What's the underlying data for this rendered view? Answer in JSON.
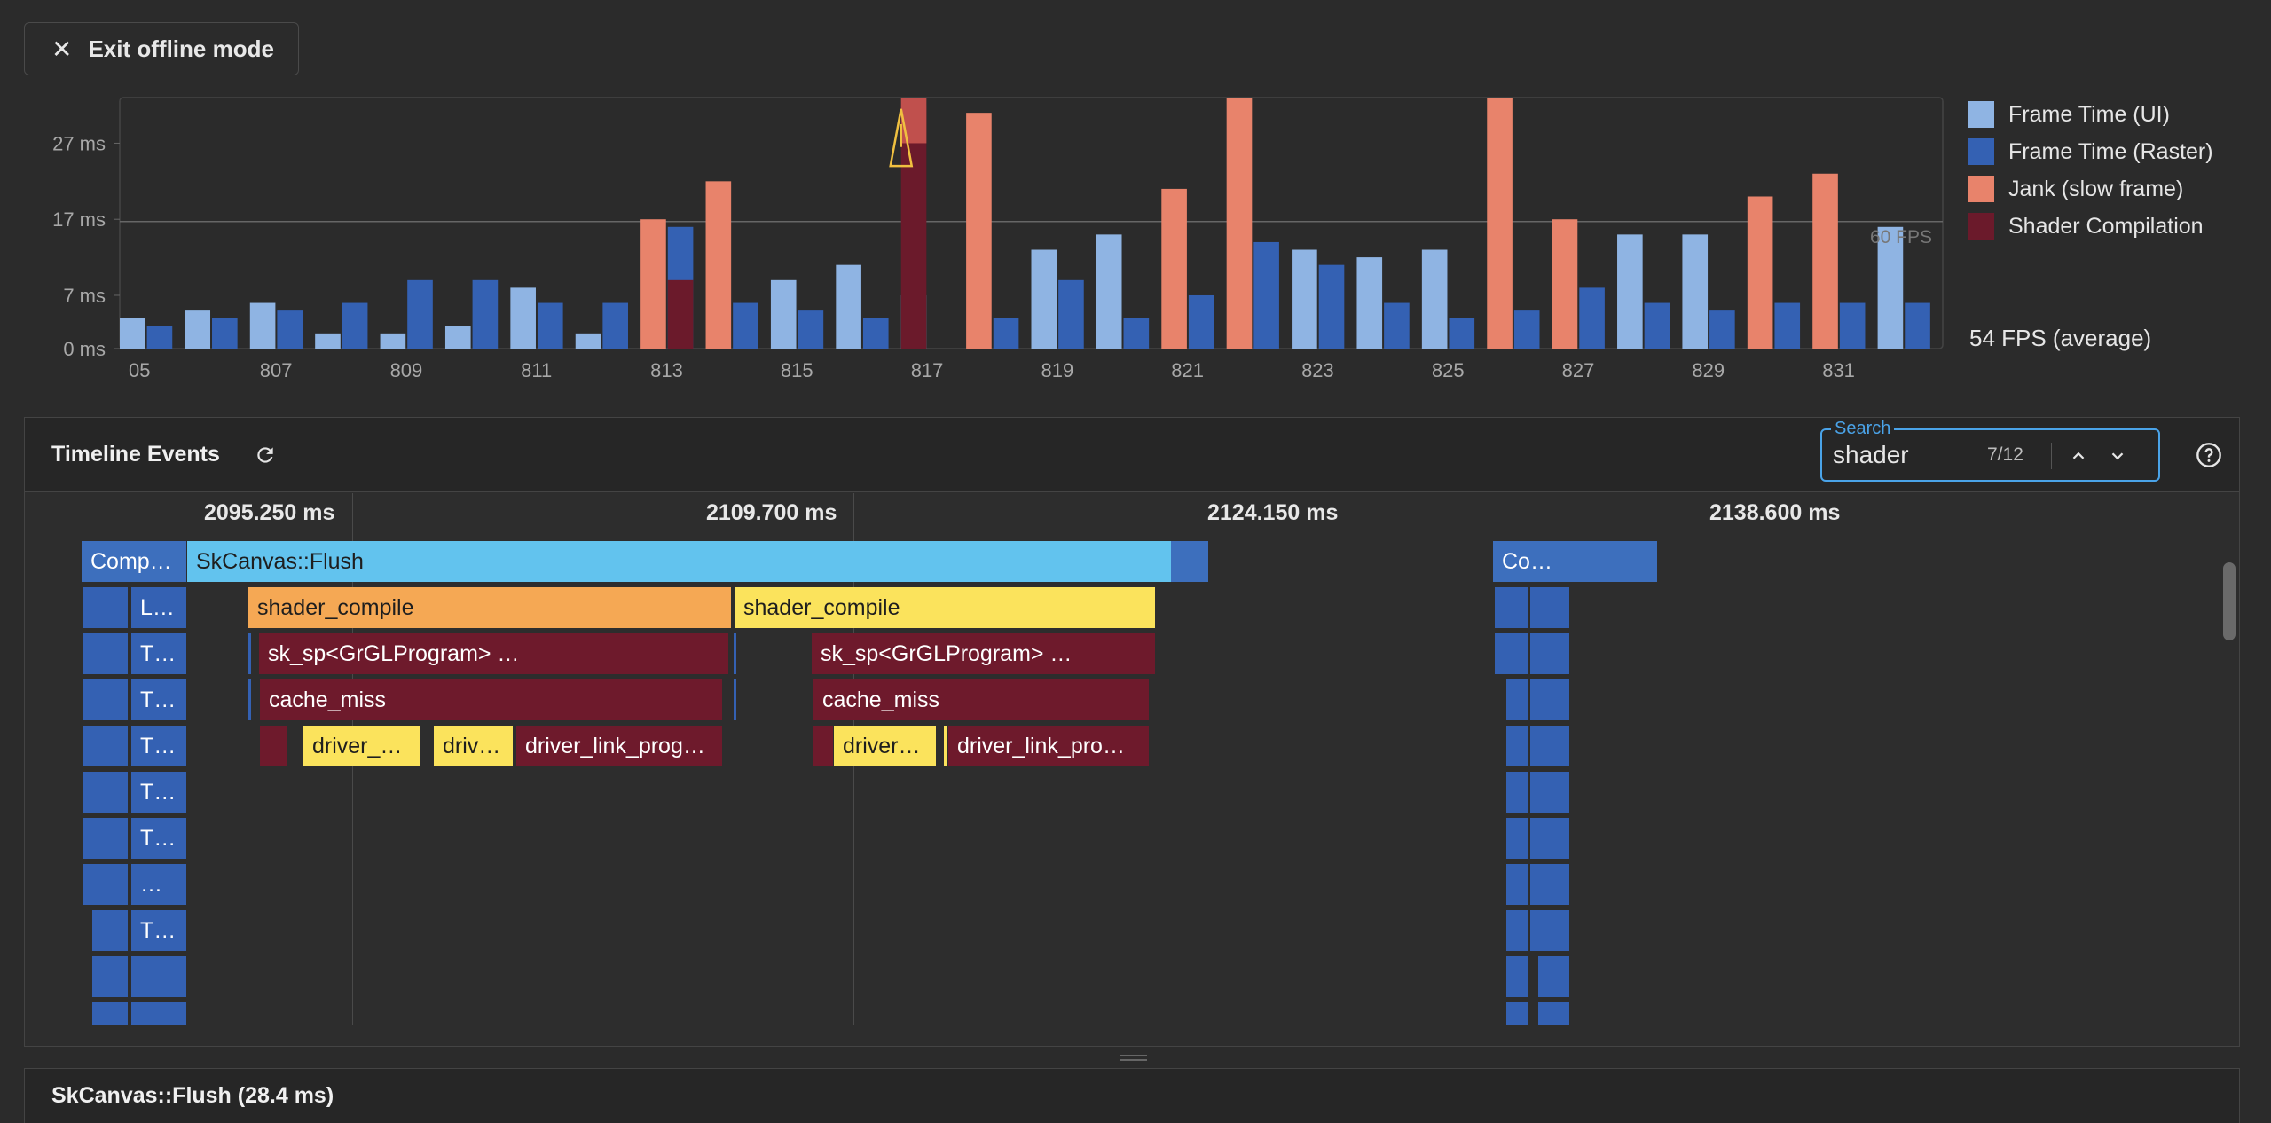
{
  "toolbar": {
    "exit_label": "Exit offline mode",
    "exit_icon": "close-icon"
  },
  "chart_data": {
    "type": "bar",
    "yticks": [
      "27 ms",
      "17 ms",
      "7 ms",
      "0 ms"
    ],
    "ylim": [
      0,
      33
    ],
    "categories": [
      "805",
      "806",
      "807",
      "808",
      "809",
      "810",
      "811",
      "812",
      "813",
      "814",
      "815",
      "816",
      "817",
      "818",
      "819",
      "820",
      "821",
      "822",
      "823",
      "824",
      "825",
      "826",
      "827",
      "828",
      "829",
      "830",
      "831",
      "832"
    ],
    "xtick_labels": [
      "05",
      "807",
      "809",
      "811",
      "813",
      "815",
      "817",
      "819",
      "821",
      "823",
      "825",
      "827",
      "829",
      "831"
    ],
    "fps_line": {
      "value": 16.7,
      "label": "60 FPS"
    },
    "series": [
      {
        "name": "Frame Time (UI)",
        "color": "#8fb4e3",
        "values": [
          4,
          5,
          6,
          2,
          2,
          3,
          8,
          2,
          0,
          0,
          9,
          11,
          7,
          0,
          13,
          15,
          0,
          0,
          13,
          12,
          13,
          0,
          0,
          15,
          15,
          0,
          0,
          16
        ]
      },
      {
        "name": "Frame Time (Raster)",
        "color": "#3461b3",
        "values": [
          3,
          4,
          5,
          6,
          9,
          9,
          6,
          6,
          16,
          6,
          5,
          4,
          0,
          4,
          9,
          4,
          7,
          14,
          11,
          6,
          4,
          5,
          8,
          6,
          5,
          6,
          6,
          6
        ]
      },
      {
        "name": "Jank (slow frame)",
        "color": "#e8836b",
        "values": [
          0,
          0,
          0,
          0,
          0,
          0,
          0,
          0,
          17,
          22,
          0,
          0,
          0,
          31,
          0,
          0,
          21,
          33,
          0,
          0,
          0,
          33,
          17,
          0,
          0,
          20,
          23,
          0
        ]
      },
      {
        "name": "Shader Compilation",
        "color": "#6b1a2b",
        "values": [
          0,
          0,
          0,
          0,
          0,
          0,
          0,
          0,
          9,
          0,
          0,
          0,
          32,
          0,
          0,
          0,
          0,
          0,
          0,
          0,
          0,
          0,
          0,
          0,
          0,
          0,
          0,
          0
        ]
      }
    ],
    "warning_at": "817",
    "legend_position": "right"
  },
  "fps_average": "54 FPS (average)",
  "timeline": {
    "title": "Timeline Events",
    "refresh_icon": "refresh-icon",
    "search": {
      "label": "Search",
      "value": "shader",
      "count": "7/12"
    },
    "ticks": [
      "2095.250 ms",
      "2109.700 ms",
      "2124.150 ms",
      "2138.600 ms"
    ],
    "events": {
      "comp": "Comp…",
      "flush": "SkCanvas::Flush",
      "co": "Co…",
      "l": "L…",
      "t": "T…",
      "dots": "…",
      "shader_compile": "shader_compile",
      "sksp1": "sk_sp<GrGLProgram> …",
      "sksp2": "sk_sp<GrGLProgram> …",
      "cache_miss": "cache_miss",
      "driver_a": "driver_…",
      "driv": "driv…",
      "driver_link_1": "driver_link_prog…",
      "driver_b": "driver…",
      "driver_link_2": "driver_link_pro…"
    }
  },
  "details": {
    "title": "SkCanvas::Flush (28.4 ms)"
  }
}
